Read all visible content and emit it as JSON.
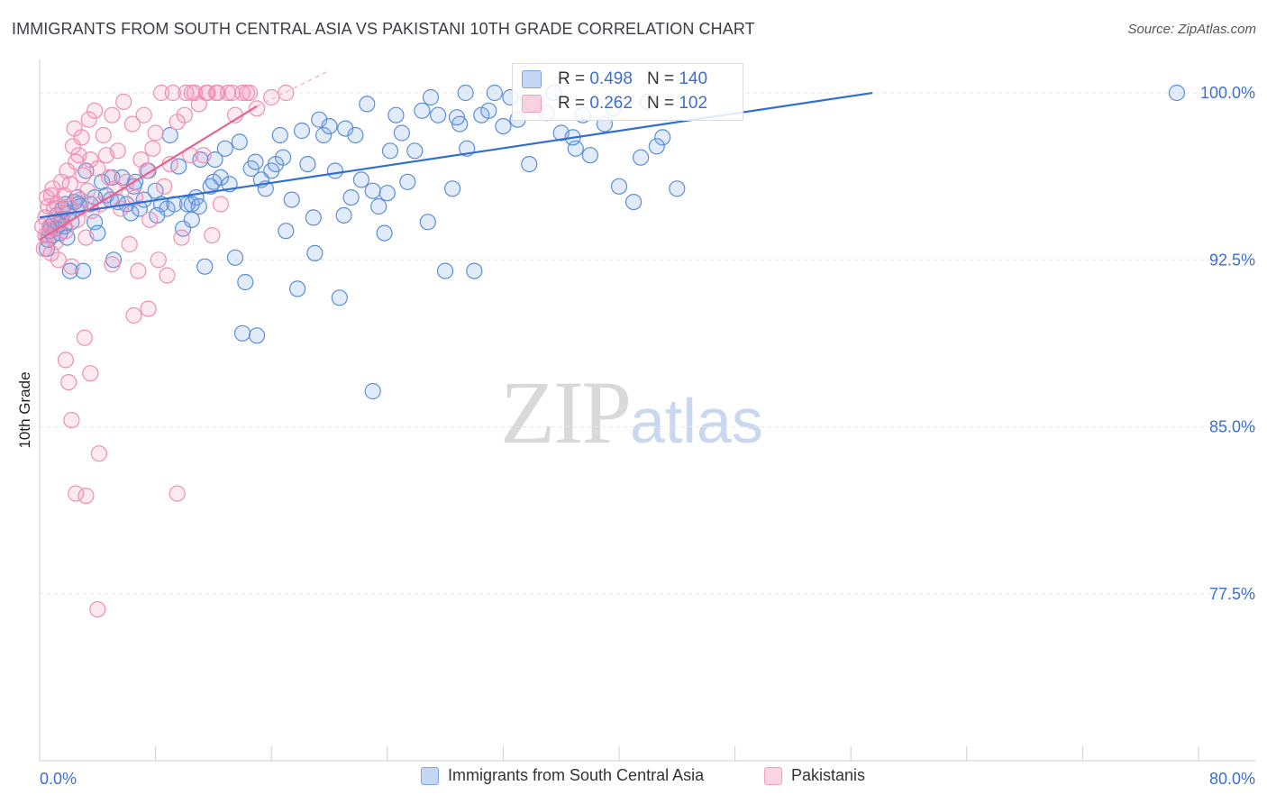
{
  "header": {
    "title": "IMMIGRANTS FROM SOUTH CENTRAL ASIA VS PAKISTANI 10TH GRADE CORRELATION CHART",
    "source": "Source: ZipAtlas.com"
  },
  "watermark": {
    "zip": "ZIP",
    "atlas": "atlas"
  },
  "stats": [
    {
      "r_label": "R =",
      "r_value": "0.498",
      "n_label": "N =",
      "n_value": "140",
      "color": "#7aa6e8"
    },
    {
      "r_label": "R =",
      "r_value": "0.262",
      "n_label": "N =",
      "n_value": "102",
      "color": "#f2a0bd"
    }
  ],
  "legend": [
    {
      "label": "Immigrants from South Central Asia",
      "color": "#7aa6e8"
    },
    {
      "label": "Pakistanis",
      "color": "#f2a0bd"
    }
  ],
  "colors": {
    "blue_fill": "rgba(122,166,232,0.22)",
    "blue_stroke": "#5b8ed8",
    "blue_line": "#2f6fd0",
    "pink_fill": "rgba(242,140,176,0.18)",
    "pink_stroke": "#ef8fb2",
    "pink_line": "#e8628f",
    "axis_label": "#3b6fd0",
    "grid": "#e6e6e6"
  },
  "chart_data": {
    "type": "scatter",
    "title": "IMMIGRANTS FROM SOUTH CENTRAL ASIA VS PAKISTANI 10TH GRADE CORRELATION CHART",
    "xlabel": "",
    "ylabel": "10th Grade",
    "xlim": [
      0,
      80
    ],
    "ylim": [
      70,
      101.5
    ],
    "x_tick_labels": [
      "0.0%",
      "80.0%"
    ],
    "y_ticks": [
      100,
      92.5,
      85,
      77.5
    ],
    "y_tick_labels": [
      "100.0%",
      "92.5%",
      "85.0%",
      "77.5%"
    ],
    "grid": true,
    "legend_position": "bottom",
    "series": [
      {
        "name": "Immigrants from South Central Asia",
        "trend": {
          "x": [
            0,
            57.5
          ],
          "y": [
            94.4,
            100.0
          ]
        },
        "points": [
          [
            0.5,
            93.0
          ],
          [
            0.6,
            93.4
          ],
          [
            0.7,
            93.8
          ],
          [
            0.8,
            94.0
          ],
          [
            0.9,
            93.6
          ],
          [
            1.0,
            94.2
          ],
          [
            1.1,
            93.9
          ],
          [
            1.2,
            94.5
          ],
          [
            1.3,
            94.1
          ],
          [
            1.4,
            93.7
          ],
          [
            1.5,
            94.3
          ],
          [
            1.6,
            94.8
          ],
          [
            1.7,
            94.0
          ],
          [
            1.8,
            95.0
          ],
          [
            1.9,
            93.5
          ],
          [
            2.0,
            94.6
          ],
          [
            2.2,
            94.2
          ],
          [
            2.4,
            95.1
          ],
          [
            2.6,
            95.3
          ],
          [
            2.8,
            94.9
          ],
          [
            3.0,
            92.0
          ],
          [
            3.2,
            96.5
          ],
          [
            3.5,
            95.0
          ],
          [
            3.8,
            94.2
          ],
          [
            4.0,
            93.7
          ],
          [
            4.3,
            96.0
          ],
          [
            4.6,
            95.4
          ],
          [
            4.9,
            95.2
          ],
          [
            5.1,
            92.5
          ],
          [
            5.4,
            95.1
          ],
          [
            5.7,
            96.2
          ],
          [
            6.0,
            95.0
          ],
          [
            6.3,
            94.6
          ],
          [
            6.6,
            96.0
          ],
          [
            6.9,
            94.8
          ],
          [
            7.2,
            95.2
          ],
          [
            7.5,
            96.5
          ],
          [
            8.0,
            95.6
          ],
          [
            8.4,
            95.0
          ],
          [
            8.8,
            94.8
          ],
          [
            9.0,
            98.1
          ],
          [
            9.3,
            95.0
          ],
          [
            9.6,
            96.7
          ],
          [
            9.9,
            93.9
          ],
          [
            10.2,
            95.0
          ],
          [
            10.5,
            94.3
          ],
          [
            10.8,
            95.3
          ],
          [
            11.1,
            97.0
          ],
          [
            11.4,
            92.2
          ],
          [
            11.8,
            95.8
          ],
          [
            12.1,
            97.0
          ],
          [
            12.5,
            96.2
          ],
          [
            12.8,
            97.5
          ],
          [
            13.1,
            95.9
          ],
          [
            13.5,
            92.6
          ],
          [
            13.8,
            97.8
          ],
          [
            14.2,
            91.5
          ],
          [
            14.6,
            96.6
          ],
          [
            14.9,
            96.9
          ],
          [
            15.3,
            96.1
          ],
          [
            15.6,
            95.7
          ],
          [
            16.0,
            96.5
          ],
          [
            16.3,
            96.8
          ],
          [
            16.6,
            98.1
          ],
          [
            17.0,
            93.8
          ],
          [
            17.4,
            95.2
          ],
          [
            17.8,
            91.2
          ],
          [
            18.1,
            98.3
          ],
          [
            18.5,
            96.8
          ],
          [
            18.9,
            94.4
          ],
          [
            19.3,
            98.8
          ],
          [
            19.6,
            98.1
          ],
          [
            20.0,
            98.5
          ],
          [
            20.4,
            96.5
          ],
          [
            20.7,
            90.8
          ],
          [
            21.1,
            98.4
          ],
          [
            21.5,
            95.3
          ],
          [
            21.8,
            98.1
          ],
          [
            22.2,
            96.1
          ],
          [
            22.6,
            99.5
          ],
          [
            23.0,
            95.6
          ],
          [
            23.4,
            94.9
          ],
          [
            23.8,
            93.7
          ],
          [
            24.2,
            97.4
          ],
          [
            24.6,
            99.0
          ],
          [
            25.0,
            98.2
          ],
          [
            25.4,
            96.0
          ],
          [
            25.9,
            97.4
          ],
          [
            26.4,
            99.2
          ],
          [
            27.0,
            99.8
          ],
          [
            27.5,
            99.0
          ],
          [
            28.0,
            92.0
          ],
          [
            28.5,
            95.7
          ],
          [
            29.0,
            98.6
          ],
          [
            29.5,
            97.5
          ],
          [
            30.5,
            99.0
          ],
          [
            31.0,
            99.2
          ],
          [
            32.0,
            98.5
          ],
          [
            32.5,
            99.8
          ],
          [
            33.0,
            98.8
          ],
          [
            34.0,
            99.5
          ],
          [
            35.0,
            99.1
          ],
          [
            35.5,
            100.0
          ],
          [
            36.0,
            98.2
          ],
          [
            37.0,
            97.5
          ],
          [
            37.5,
            99.0
          ],
          [
            38.0,
            97.2
          ],
          [
            39.0,
            98.6
          ],
          [
            40.0,
            95.8
          ],
          [
            41.0,
            95.1
          ],
          [
            41.5,
            97.1
          ],
          [
            42.0,
            99.6
          ],
          [
            43.0,
            98.0
          ],
          [
            44.0,
            95.7
          ],
          [
            14.0,
            89.2
          ],
          [
            15.0,
            89.1
          ],
          [
            23.0,
            86.6
          ],
          [
            30.0,
            92.0
          ],
          [
            10.5,
            95.0
          ],
          [
            12.0,
            96.0
          ],
          [
            5.0,
            96.2
          ],
          [
            6.5,
            95.8
          ],
          [
            3.8,
            95.3
          ],
          [
            2.1,
            92.0
          ],
          [
            2.7,
            95.0
          ],
          [
            8.1,
            94.5
          ],
          [
            11.0,
            94.9
          ],
          [
            16.8,
            97.1
          ],
          [
            19.0,
            92.8
          ],
          [
            21.0,
            94.5
          ],
          [
            24.0,
            95.5
          ],
          [
            26.8,
            94.2
          ],
          [
            28.8,
            98.9
          ],
          [
            33.8,
            96.8
          ],
          [
            36.8,
            98.0
          ],
          [
            39.6,
            99.3
          ],
          [
            42.6,
            97.6
          ],
          [
            29.4,
            100.0
          ],
          [
            31.4,
            100.0
          ],
          [
            78.5,
            100.0
          ]
        ]
      },
      {
        "name": "Pakistanis",
        "trend": {
          "x": [
            0,
            15
          ],
          "y": [
            93.4,
            99.4
          ]
        },
        "trend_dashed": {
          "x": [
            15,
            20
          ],
          "y": [
            99.4,
            101.0
          ]
        },
        "points": [
          [
            0.3,
            93.0
          ],
          [
            0.4,
            94.4
          ],
          [
            0.5,
            95.3
          ],
          [
            0.6,
            93.6
          ],
          [
            0.7,
            94.0
          ],
          [
            0.8,
            92.8
          ],
          [
            0.9,
            95.7
          ],
          [
            1.0,
            94.8
          ],
          [
            1.1,
            93.3
          ],
          [
            1.2,
            95.0
          ],
          [
            1.3,
            92.5
          ],
          [
            1.4,
            94.2
          ],
          [
            1.5,
            96.0
          ],
          [
            1.6,
            94.6
          ],
          [
            1.7,
            95.4
          ],
          [
            1.8,
            93.8
          ],
          [
            1.9,
            96.5
          ],
          [
            2.0,
            94.9
          ],
          [
            2.1,
            95.9
          ],
          [
            2.2,
            92.2
          ],
          [
            2.3,
            97.6
          ],
          [
            2.4,
            98.4
          ],
          [
            2.5,
            96.9
          ],
          [
            2.6,
            94.3
          ],
          [
            2.7,
            97.2
          ],
          [
            2.8,
            95.2
          ],
          [
            2.9,
            98.0
          ],
          [
            3.0,
            96.3
          ],
          [
            3.1,
            89.0
          ],
          [
            3.2,
            93.5
          ],
          [
            3.3,
            95.6
          ],
          [
            3.4,
            98.8
          ],
          [
            3.5,
            97.0
          ],
          [
            3.6,
            94.7
          ],
          [
            3.8,
            99.2
          ],
          [
            4.0,
            96.6
          ],
          [
            4.2,
            95.0
          ],
          [
            4.4,
            98.1
          ],
          [
            4.6,
            97.2
          ],
          [
            4.8,
            96.2
          ],
          [
            5.0,
            99.0
          ],
          [
            5.2,
            95.7
          ],
          [
            5.4,
            97.4
          ],
          [
            5.6,
            94.8
          ],
          [
            5.8,
            99.6
          ],
          [
            6.0,
            96.0
          ],
          [
            6.2,
            93.2
          ],
          [
            6.4,
            98.6
          ],
          [
            6.6,
            95.3
          ],
          [
            6.8,
            92.0
          ],
          [
            7.0,
            97.0
          ],
          [
            7.2,
            99.0
          ],
          [
            7.4,
            96.5
          ],
          [
            7.6,
            94.3
          ],
          [
            7.8,
            97.5
          ],
          [
            8.0,
            98.2
          ],
          [
            8.2,
            92.5
          ],
          [
            8.4,
            100.0
          ],
          [
            8.6,
            95.8
          ],
          [
            8.8,
            91.8
          ],
          [
            9.0,
            96.8
          ],
          [
            9.2,
            100.0
          ],
          [
            9.5,
            98.7
          ],
          [
            9.8,
            93.5
          ],
          [
            10.1,
            100.0
          ],
          [
            10.4,
            97.2
          ],
          [
            10.7,
            100.0
          ],
          [
            11.0,
            99.5
          ],
          [
            11.3,
            97.2
          ],
          [
            11.6,
            100.0
          ],
          [
            11.9,
            93.6
          ],
          [
            12.2,
            100.0
          ],
          [
            12.5,
            95.0
          ],
          [
            13.0,
            100.0
          ],
          [
            13.5,
            99.0
          ],
          [
            14.0,
            100.0
          ],
          [
            14.5,
            100.0
          ],
          [
            15.0,
            99.3
          ],
          [
            16.0,
            99.8
          ],
          [
            17.0,
            100.0
          ],
          [
            2.5,
            82.0
          ],
          [
            3.2,
            81.9
          ],
          [
            4.1,
            83.8
          ],
          [
            9.5,
            82.0
          ],
          [
            4.0,
            76.8
          ],
          [
            1.8,
            88.0
          ],
          [
            2.0,
            87.0
          ],
          [
            2.2,
            85.3
          ],
          [
            3.5,
            87.4
          ],
          [
            5.0,
            92.3
          ],
          [
            6.5,
            90.0
          ],
          [
            7.5,
            90.3
          ],
          [
            10.0,
            99.0
          ],
          [
            10.5,
            100.0
          ],
          [
            11.5,
            100.0
          ],
          [
            12.3,
            100.0
          ],
          [
            13.3,
            100.0
          ],
          [
            14.3,
            100.0
          ],
          [
            0.2,
            94.0
          ],
          [
            0.4,
            93.6
          ],
          [
            0.6,
            94.9
          ],
          [
            0.8,
            95.4
          ]
        ]
      }
    ]
  }
}
